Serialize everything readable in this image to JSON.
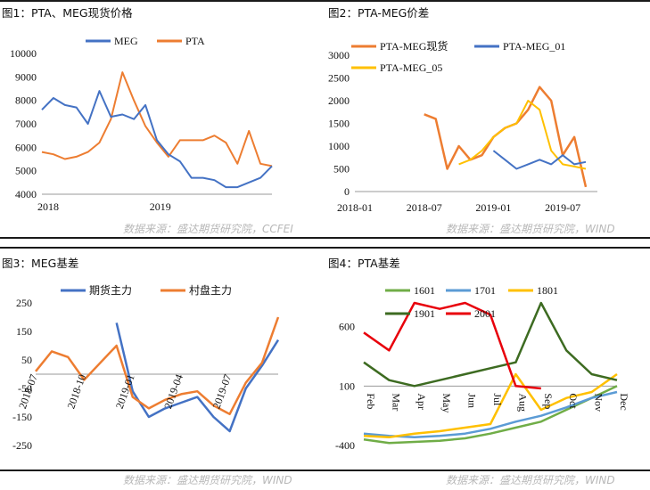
{
  "colors": {
    "blue": "#4472C4",
    "orange": "#ED7D31",
    "yellow": "#FFC000",
    "green": "#70AD47",
    "lightblue": "#5B9BD5",
    "darkgreen": "#3D6B21",
    "red": "#E8000B"
  },
  "panels": [
    {
      "title": "图1：PTA、MEG现货价格",
      "source": "数据来源：盛达期货研究院，CCFEI"
    },
    {
      "title": "图2：PTA-MEG价差",
      "source": "数据来源：盛达期货研究院，WIND"
    },
    {
      "title": "图3：MEG基差",
      "source": "数据来源：盛达期货研究院，WIND"
    },
    {
      "title": "图4：PTA基差",
      "source": "数据来源：盛达期货研究院，WIND"
    }
  ],
  "chart_data": [
    {
      "type": "line",
      "ylim": [
        4000,
        10000
      ],
      "yticks": [
        "10000",
        "9000",
        "8000",
        "7000",
        "6000",
        "5000",
        "4000"
      ],
      "xtick_labels": [
        "2018",
        "2019"
      ],
      "legend": "top",
      "series": [
        {
          "name": "MEG",
          "x": [
            "2018-01",
            "2018-02",
            "2018-03",
            "2018-04",
            "2018-05",
            "2018-06",
            "2018-07",
            "2018-08",
            "2018-09",
            "2018-10",
            "2018-11",
            "2018-12",
            "2019-01",
            "2019-02",
            "2019-03",
            "2019-04",
            "2019-05",
            "2019-06",
            "2019-07",
            "2019-08",
            "2019-09"
          ],
          "values": [
            7600,
            8100,
            7800,
            7700,
            7000,
            8400,
            7300,
            7400,
            7200,
            7800,
            6300,
            5700,
            5400,
            4700,
            4700,
            4600,
            4300,
            4300,
            4500,
            4700,
            5200
          ]
        },
        {
          "name": "PTA",
          "x": [
            "2018-01",
            "2018-02",
            "2018-03",
            "2018-04",
            "2018-05",
            "2018-06",
            "2018-07",
            "2018-08",
            "2018-09",
            "2018-10",
            "2018-11",
            "2018-12",
            "2019-01",
            "2019-02",
            "2019-03",
            "2019-04",
            "2019-05",
            "2019-06",
            "2019-07",
            "2019-08",
            "2019-09"
          ],
          "values": [
            5800,
            5700,
            5500,
            5600,
            5800,
            6200,
            7200,
            9200,
            8000,
            6900,
            6200,
            5600,
            6300,
            6300,
            6300,
            6500,
            6200,
            5300,
            6700,
            5300,
            5200
          ]
        }
      ]
    },
    {
      "type": "line",
      "ylim": [
        0,
        3000
      ],
      "yticks": [
        "3000",
        "2500",
        "2000",
        "1500",
        "1000",
        "500",
        "0"
      ],
      "xtick_labels": [
        "2018-01",
        "2018-07",
        "2019-01",
        "2019-07"
      ],
      "legend": "top",
      "series": [
        {
          "name": "PTA-MEG现货",
          "x": [
            "2018-07",
            "2018-08",
            "2018-09",
            "2018-10",
            "2018-11",
            "2018-12",
            "2019-01",
            "2019-02",
            "2019-03",
            "2019-04",
            "2019-05",
            "2019-06",
            "2019-07",
            "2019-08",
            "2019-09"
          ],
          "values": [
            1700,
            1600,
            500,
            1000,
            700,
            800,
            1200,
            1400,
            1500,
            1800,
            2300,
            2000,
            800,
            1200,
            100
          ]
        },
        {
          "name": "PTA-MEG_01",
          "x": [
            "2019-01",
            "2019-02",
            "2019-03",
            "2019-04",
            "2019-05",
            "2019-06",
            "2019-07",
            "2019-08",
            "2019-09"
          ],
          "values": [
            900,
            700,
            500,
            600,
            700,
            600,
            800,
            600,
            650
          ]
        },
        {
          "name": "PTA-MEG_05",
          "x": [
            "2018-10",
            "2018-11",
            "2018-12",
            "2019-01",
            "2019-02",
            "2019-03",
            "2019-04",
            "2019-05",
            "2019-06",
            "2019-07",
            "2019-08",
            "2019-09"
          ],
          "values": [
            600,
            700,
            900,
            1200,
            1400,
            1500,
            2000,
            1800,
            900,
            600,
            550,
            500
          ]
        }
      ]
    },
    {
      "type": "line",
      "ylim": [
        -250,
        250
      ],
      "yticks": [
        "250",
        "150",
        "50",
        "-50",
        "-150",
        "-250"
      ],
      "xtick_labels": [
        "2018-07",
        "2018-10",
        "2019-01",
        "2019-04",
        "2019-07"
      ],
      "legend": "top",
      "series": [
        {
          "name": "期货主力",
          "x": [
            "2018-12",
            "2019-01",
            "2019-02",
            "2019-03",
            "2019-04",
            "2019-05",
            "2019-06",
            "2019-07",
            "2019-08",
            "2019-09",
            "2019-10"
          ],
          "values": [
            180,
            -60,
            -150,
            -120,
            -100,
            -80,
            -150,
            -200,
            -50,
            30,
            120
          ]
        },
        {
          "name": "村盘主力",
          "x": [
            "2018-07",
            "2018-08",
            "2018-09",
            "2018-10",
            "2018-11",
            "2018-12",
            "2019-01",
            "2019-02",
            "2019-03",
            "2019-04",
            "2019-05",
            "2019-06",
            "2019-07",
            "2019-08",
            "2019-09",
            "2019-10"
          ],
          "values": [
            10,
            80,
            60,
            -20,
            40,
            100,
            -80,
            -120,
            -90,
            -70,
            -60,
            -110,
            -140,
            -30,
            40,
            200
          ]
        }
      ]
    },
    {
      "type": "line",
      "ylim": [
        -400,
        800
      ],
      "yticks": [
        "600",
        "100",
        "-400"
      ],
      "xtick_labels": [
        "Feb",
        "Mar",
        "Apr",
        "May",
        "Jun",
        "Jul",
        "Aug",
        "Sep",
        "Oct",
        "Nov",
        "Dec"
      ],
      "legend": "top",
      "series": [
        {
          "name": "1601",
          "x": [
            "Feb",
            "Mar",
            "Apr",
            "May",
            "Jun",
            "Jul",
            "Aug",
            "Sep",
            "Oct",
            "Nov",
            "Dec"
          ],
          "values": [
            -350,
            -380,
            -370,
            -360,
            -340,
            -300,
            -250,
            -200,
            -100,
            0,
            100
          ]
        },
        {
          "name": "1701",
          "x": [
            "Feb",
            "Mar",
            "Apr",
            "May",
            "Jun",
            "Jul",
            "Aug",
            "Sep",
            "Oct",
            "Nov",
            "Dec"
          ],
          "values": [
            -300,
            -320,
            -330,
            -320,
            -300,
            -260,
            -200,
            -150,
            -80,
            0,
            50
          ]
        },
        {
          "name": "1801",
          "x": [
            "Feb",
            "Mar",
            "Apr",
            "May",
            "Jun",
            "Jul",
            "Aug",
            "Sep",
            "Oct",
            "Nov",
            "Dec"
          ],
          "values": [
            -320,
            -330,
            -300,
            -280,
            -250,
            -220,
            200,
            -100,
            0,
            50,
            200
          ]
        },
        {
          "name": "1901",
          "x": [
            "Feb",
            "Mar",
            "Apr",
            "May",
            "Jun",
            "Jul",
            "Aug",
            "Sep",
            "Oct",
            "Nov",
            "Dec"
          ],
          "values": [
            300,
            150,
            100,
            150,
            200,
            250,
            300,
            800,
            400,
            200,
            150
          ]
        },
        {
          "name": "2001",
          "x": [
            "Feb",
            "Mar",
            "Apr",
            "May",
            "Jun",
            "Jul",
            "Aug",
            "Sep",
            "Oct",
            "Nov",
            "Dec"
          ],
          "values": [
            550,
            400,
            800,
            750,
            800,
            700,
            100,
            80,
            null,
            null,
            null
          ]
        }
      ]
    }
  ]
}
